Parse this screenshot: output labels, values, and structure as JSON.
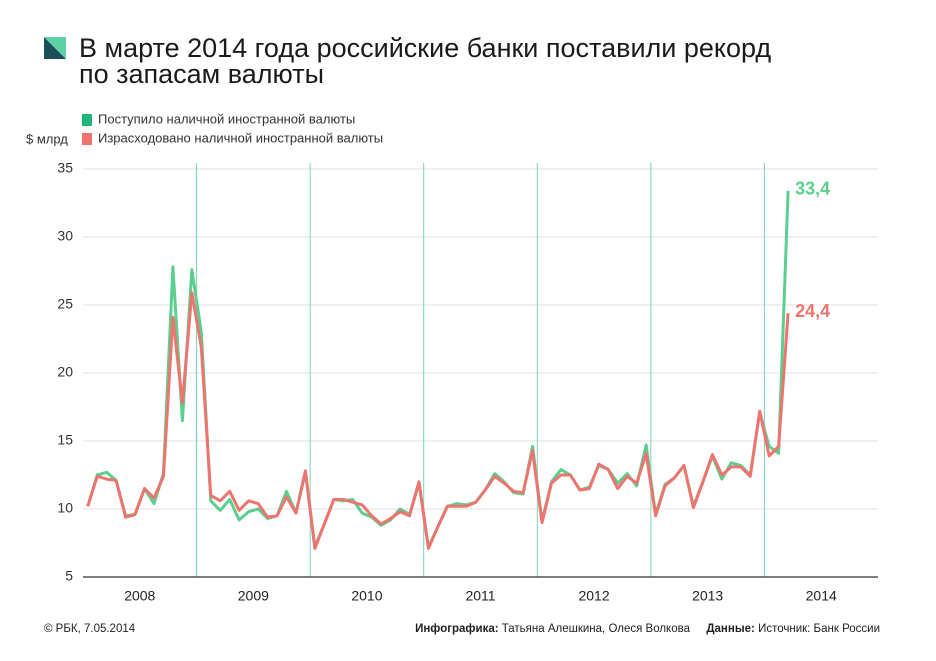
{
  "chart_data": {
    "type": "line",
    "title_lines": [
      "В марте 2014 года российские банки поставили рекорд",
      "по запасам валюты"
    ],
    "y_unit": "$ млрд",
    "categories": [
      "2008",
      null,
      null,
      null,
      null,
      null,
      null,
      null,
      null,
      null,
      null,
      null,
      "2009",
      null,
      null,
      null,
      null,
      null,
      null,
      null,
      null,
      null,
      null,
      null,
      "2010",
      null,
      null,
      null,
      null,
      null,
      null,
      null,
      null,
      null,
      null,
      null,
      "2011",
      null,
      null,
      null,
      null,
      null,
      null,
      null,
      null,
      null,
      null,
      null,
      "2012",
      null,
      null,
      null,
      null,
      null,
      null,
      null,
      null,
      null,
      null,
      null,
      "2013",
      null,
      null,
      null,
      null,
      null,
      null,
      null,
      null,
      null,
      null,
      null,
      "2014",
      null,
      null
    ],
    "series": [
      {
        "name": "Поступило наличной иностранной валюты",
        "color": "#5ccf8f",
        "legend_color": "#1fb57a",
        "values": [
          10.2,
          12.5,
          12.7,
          12.1,
          9.5,
          9.6,
          11.5,
          10.4,
          12.6,
          27.8,
          16.5,
          27.6,
          23.0,
          10.6,
          9.9,
          10.7,
          9.2,
          9.8,
          10.0,
          9.3,
          9.5,
          11.3,
          9.7,
          12.7,
          7.2,
          8.9,
          10.7,
          10.6,
          10.7,
          9.7,
          9.4,
          8.8,
          9.2,
          10.0,
          9.6,
          11.9,
          7.2,
          8.7,
          10.2,
          10.4,
          10.3,
          10.5,
          11.4,
          12.6,
          12.0,
          11.2,
          11.1,
          14.6,
          9.1,
          12.0,
          12.9,
          12.5,
          11.4,
          11.6,
          13.2,
          12.9,
          11.9,
          12.6,
          11.7,
          14.7,
          9.6,
          11.8,
          12.3,
          13.2,
          10.2,
          12.0,
          13.9,
          12.2,
          13.4,
          13.2,
          12.5,
          17.1,
          14.6,
          14.1,
          33.4
        ],
        "value_labels": [
          null,
          null,
          null,
          null,
          null,
          null,
          null,
          null,
          null,
          null,
          null,
          null,
          null,
          null,
          null,
          null,
          null,
          null,
          null,
          null,
          null,
          null,
          null,
          null,
          null,
          null,
          null,
          null,
          null,
          null,
          null,
          null,
          null,
          null,
          null,
          null,
          null,
          null,
          null,
          null,
          null,
          null,
          null,
          null,
          null,
          null,
          null,
          null,
          null,
          null,
          null,
          null,
          null,
          null,
          null,
          null,
          null,
          null,
          null,
          null,
          null,
          null,
          null,
          null,
          null,
          null,
          null,
          null,
          null,
          null,
          null,
          null,
          null,
          null,
          "33,4"
        ]
      },
      {
        "name": "Израсходовано наличной иностранной валюты",
        "color": "#ee7470",
        "legend_color": "#f0746c",
        "values": [
          10.2,
          12.4,
          12.2,
          12.1,
          9.4,
          9.6,
          11.5,
          10.8,
          12.4,
          24.1,
          17.8,
          25.9,
          21.9,
          11.0,
          10.6,
          11.3,
          9.9,
          10.6,
          10.4,
          9.4,
          9.5,
          10.9,
          9.7,
          12.8,
          7.1,
          8.9,
          10.7,
          10.7,
          10.5,
          10.3,
          9.5,
          8.9,
          9.3,
          9.8,
          9.5,
          12.0,
          7.1,
          8.7,
          10.2,
          10.2,
          10.2,
          10.5,
          11.4,
          12.4,
          11.9,
          11.3,
          11.2,
          14.3,
          9.0,
          11.9,
          12.5,
          12.5,
          11.4,
          11.5,
          13.3,
          12.9,
          11.5,
          12.4,
          11.9,
          14.1,
          9.5,
          11.7,
          12.3,
          13.2,
          10.1,
          12.0,
          14.0,
          12.5,
          13.1,
          13.1,
          12.4,
          17.2,
          13.9,
          14.6,
          24.4
        ],
        "value_labels": [
          null,
          null,
          null,
          null,
          null,
          null,
          null,
          null,
          null,
          null,
          null,
          null,
          null,
          null,
          null,
          null,
          null,
          null,
          null,
          null,
          null,
          null,
          null,
          null,
          null,
          null,
          null,
          null,
          null,
          null,
          null,
          null,
          null,
          null,
          null,
          null,
          null,
          null,
          null,
          null,
          null,
          null,
          null,
          null,
          null,
          null,
          null,
          null,
          null,
          null,
          null,
          null,
          null,
          null,
          null,
          null,
          null,
          null,
          null,
          null,
          null,
          null,
          null,
          null,
          null,
          null,
          null,
          null,
          null,
          null,
          null,
          null,
          null,
          null,
          "24,4"
        ]
      }
    ],
    "ylim": [
      5,
      35
    ],
    "yticks": [
      5,
      10,
      15,
      20,
      25,
      30,
      35
    ],
    "grid": true,
    "separator_color": "#7dd3b5",
    "footer": {
      "copyright": "© РБК, 7.05.2014",
      "infographics_label": "Инфографика:",
      "infographics": "Татьяна Алешкина, Олеся Волкова",
      "data_label": "Данные:",
      "data": "Источник: Банк России"
    }
  }
}
